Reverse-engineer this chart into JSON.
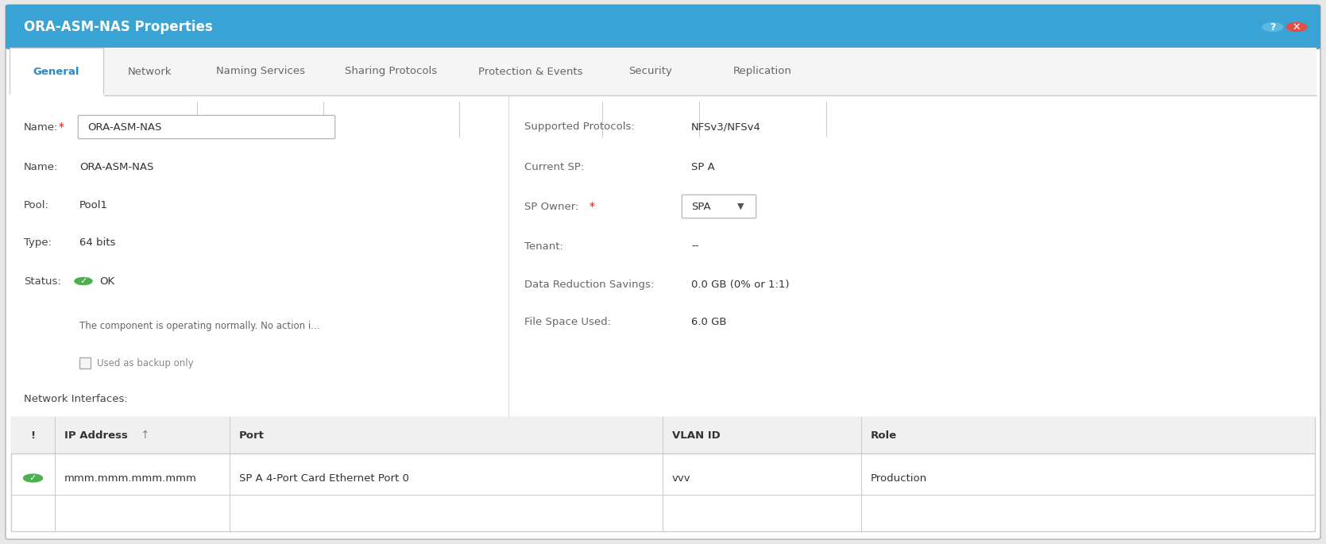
{
  "title": "ORA-ASM-NAS Properties",
  "title_bg": "#3AA3D6",
  "title_fg": "#FFFFFF",
  "title_fontsize": 12,
  "bg_color": "#FFFFFF",
  "outer_bg": "#E8E8E8",
  "tabs": [
    "General",
    "Network",
    "Naming Services",
    "Sharing Protocols",
    "Protection & Events",
    "Security",
    "Replication"
  ],
  "active_tab": "General",
  "active_tab_color": "#2B8CC4",
  "inactive_tab_color": "#666666",
  "tab_bg": "#F0F0F0",
  "name_box_value": "ORA-ASM-NAS",
  "name_value": "ORA-ASM-NAS",
  "pool_value": "Pool1",
  "type_value": "64 bits",
  "status_value": "OK",
  "status_ok_color": "#4CAF50",
  "component_msg": "The component is operating normally. No action i...",
  "backup_label": "Used as backup only",
  "right_labels": [
    "Supported Protocols:",
    "Current SP:",
    "SP Owner:",
    "Tenant:",
    "Data Reduction Savings:",
    "File Space Used:"
  ],
  "right_values": [
    "NFSv3/NFSv4",
    "SP A",
    "SPA",
    "--",
    "0.0 GB (0% or 1:1)",
    "6.0 GB"
  ],
  "network_interfaces_label": "Network Interfaces:",
  "table_headers": [
    "!",
    "IP Address",
    "Port",
    "VLAN ID",
    "Role"
  ],
  "table_row": [
    "mmm.mmm.mmm.mmm",
    "SP A 4-Port Card Ethernet Port 0",
    "vvv",
    "Production"
  ],
  "table_header_bg": "#F0F0F0",
  "table_border_color": "#CCCCCC",
  "table_text_color": "#333333",
  "separator_color": "#CCCCCC",
  "red_star": "*",
  "red_color": "#FF0000",
  "fig_w": 16.69,
  "fig_h": 6.85,
  "dpi": 100
}
